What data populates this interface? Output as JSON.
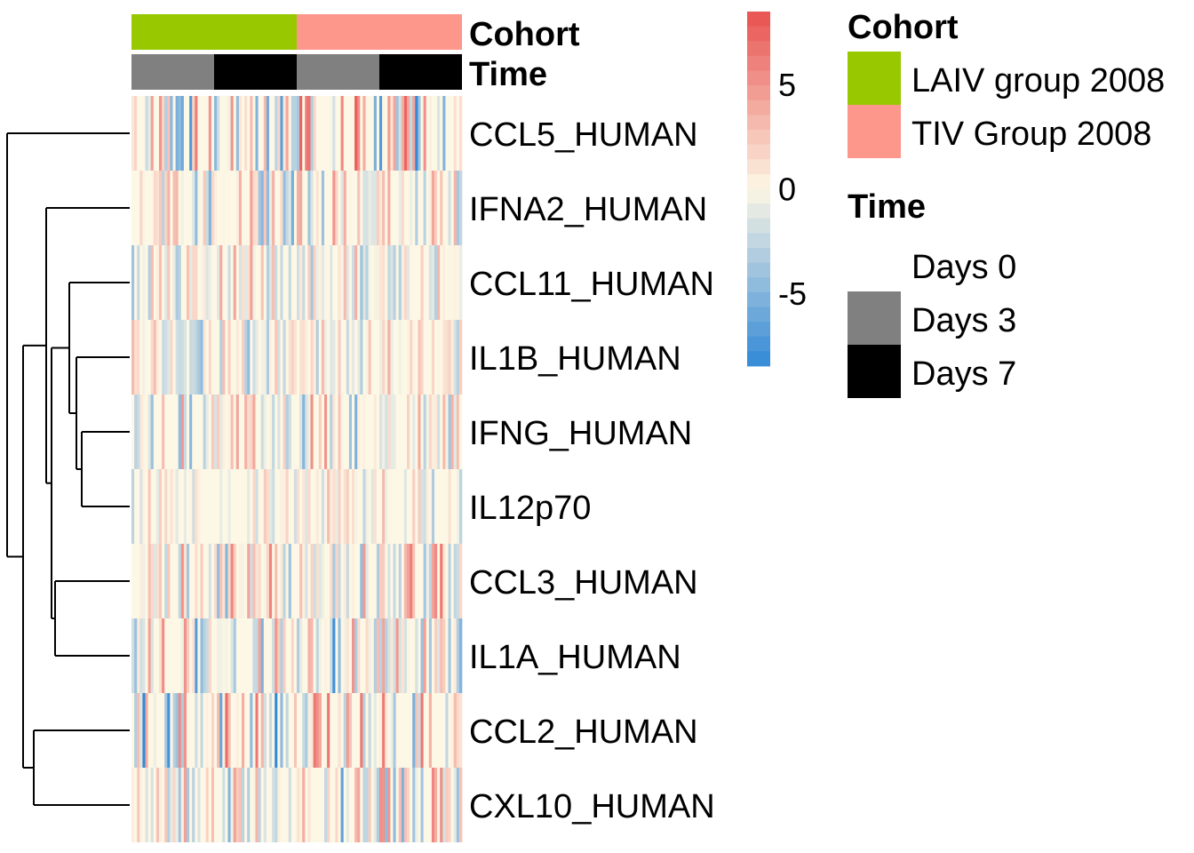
{
  "chart_data": {
    "type": "heatmap",
    "title": "",
    "rows": [
      "CCL5_HUMAN",
      "IFNA2_HUMAN",
      "CCL11_HUMAN",
      "IL1B_HUMAN",
      "IFNG_HUMAN",
      "IL12p70",
      "CCL3_HUMAN",
      "IL1A_HUMAN",
      "CCL2_HUMAN",
      "CXL10_HUMAN"
    ],
    "n_columns": 120,
    "column_annotations": [
      {
        "name": "Cohort",
        "segments": [
          {
            "level": "LAIV group 2008",
            "count": 60
          },
          {
            "level": "TIV Group 2008",
            "count": 60
          }
        ]
      },
      {
        "name": "Time",
        "segments": [
          {
            "level": "Days 3",
            "count": 30
          },
          {
            "level": "Days 7",
            "count": 30
          },
          {
            "level": "Days 3",
            "count": 30
          },
          {
            "level": "Days 7",
            "count": 30
          }
        ]
      }
    ],
    "color_scale": {
      "breaks": [
        -8.5,
        8.5
      ],
      "ticks": [
        5,
        0,
        -5
      ],
      "low_color": "#3288d6",
      "mid_color": "#fdf7e5",
      "high_color": "#e8514f"
    },
    "row_dendrogram": {
      "merges": [
        {
          "a": 4,
          "b": 5
        },
        {
          "a": 3,
          "b": "m0"
        },
        {
          "a": 2,
          "b": "m1"
        },
        {
          "a": 6,
          "b": 7
        },
        {
          "a": "m2",
          "b": "m3"
        },
        {
          "a": 1,
          "b": "m4"
        },
        {
          "a": 8,
          "b": 9
        },
        {
          "a": "m5",
          "b": "m6"
        },
        {
          "a": 0,
          "b": "m7"
        }
      ]
    },
    "legends": {
      "cohort": {
        "title": "Cohort",
        "items": [
          {
            "label": "LAIV group 2008",
            "color": "#97c800"
          },
          {
            "label": "TIV Group 2008",
            "color": "#fd968b"
          }
        ]
      },
      "time": {
        "title": "Time",
        "items": [
          {
            "label": "Days 0",
            "color": "#ffffff"
          },
          {
            "label": "Days 3",
            "color": "#808080"
          },
          {
            "label": "Days 7",
            "color": "#000000"
          }
        ]
      }
    },
    "annotation_colors": {
      "LAIV group 2008": "#97c800",
      "TIV Group 2008": "#fd968b",
      "Days 0": "#ffffff",
      "Days 3": "#808080",
      "Days 7": "#000000"
    }
  }
}
